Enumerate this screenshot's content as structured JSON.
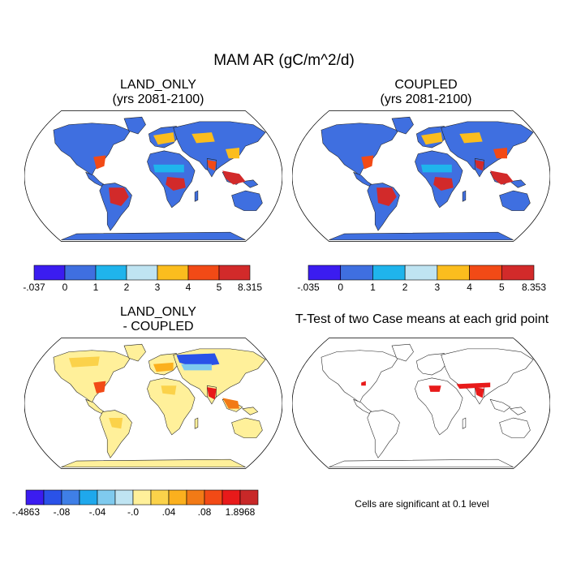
{
  "title": "MAM AR (gC/m^2/d)",
  "panels": [
    {
      "id": "land-only",
      "title_lines": [
        "LAND_ONLY",
        "(yrs 2081-2100)"
      ],
      "colorbar": {
        "colors": [
          "#3b1cf0",
          "#3f6fe0",
          "#1fb4ec",
          "#bfe4f2",
          "#fbbd1e",
          "#f24a16",
          "#d22a2a"
        ],
        "tick_labels": [
          "-.037",
          "0",
          "1",
          "2",
          "3",
          "4",
          "5",
          "8.315"
        ]
      }
    },
    {
      "id": "coupled",
      "title_lines": [
        "COUPLED",
        "(yrs 2081-2100)"
      ],
      "colorbar": {
        "colors": [
          "#3b1cf0",
          "#3f6fe0",
          "#1fb4ec",
          "#bfe4f2",
          "#fbbd1e",
          "#f24a16",
          "#d22a2a"
        ],
        "tick_labels": [
          "-.035",
          "0",
          "1",
          "2",
          "3",
          "4",
          "5",
          "8.353"
        ]
      }
    },
    {
      "id": "difference",
      "title_lines": [
        "LAND_ONLY",
        "- COUPLED"
      ],
      "colorbar": {
        "colors": [
          "#3b1cf0",
          "#2a52e8",
          "#3f7fe6",
          "#1fa8ec",
          "#7fcaee",
          "#bfe4f2",
          "#fff09a",
          "#fbd24a",
          "#fbb01e",
          "#f27a16",
          "#f24a16",
          "#e81a1a",
          "#c82828"
        ],
        "tick_labels": [
          "-.4863",
          "-.08",
          "-.04",
          "-.0",
          ".04",
          ".08",
          "1.8968"
        ]
      }
    },
    {
      "id": "ttest",
      "title_lines": [
        "T-Test of two Case means at each grid point"
      ],
      "note": "Cells are significant at 0.1 level"
    }
  ],
  "land_colors": {
    "base_blue": "#3f6fe0",
    "red": "#d22a2a",
    "orange": "#f24a16",
    "yellow": "#fbbd1e",
    "light": "#bfe4f2",
    "diff_base": "#fff09a",
    "diff_orange": "#fbb01e",
    "diff_red": "#e81a1a",
    "diff_blue": "#2a52e8",
    "sig_red": "#e81a1a"
  }
}
